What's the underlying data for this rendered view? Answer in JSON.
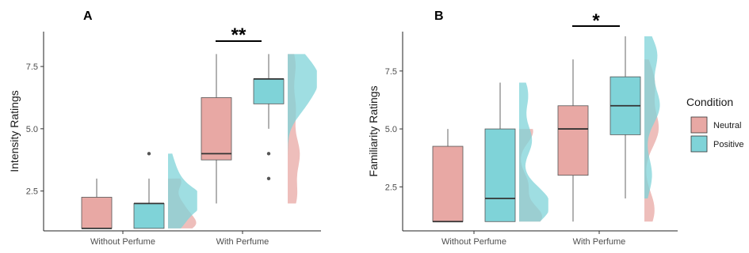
{
  "chart_data": [
    {
      "type": "boxplot",
      "panel_label": "A",
      "ylabel": "Intensity Ratings",
      "ylim": [
        0.9,
        8.9
      ],
      "yticks": [
        2.5,
        5.0,
        7.5
      ],
      "ytick_labels": [
        "2.5",
        "5.0",
        "7.5"
      ],
      "categories": [
        "Without Perfume",
        "With Perfume"
      ],
      "series": [
        {
          "name": "Neutral",
          "color": "#e8a8a4",
          "boxes": [
            {
              "min": 1,
              "q1": 1,
              "median": 1,
              "q3": 2.25,
              "max": 3,
              "outliers": []
            },
            {
              "min": 2,
              "q1": 3.75,
              "median": 4,
              "q3": 6.25,
              "max": 8,
              "outliers": []
            }
          ],
          "density": [
            {
              "min": 1,
              "max": 3,
              "peaks": [
                [
                  1.1,
                  0.9
                ],
                [
                  1.6,
                  0.5
                ],
                [
                  2.1,
                  0.35
                ],
                [
                  2.9,
                  0.5
                ]
              ]
            },
            {
              "min": 2,
              "max": 8,
              "peaks": [
                [
                  2.3,
                  0.35
                ],
                [
                  4.0,
                  0.45
                ],
                [
                  5.8,
                  0.3
                ],
                [
                  7.6,
                  0.3
                ]
              ]
            }
          ]
        },
        {
          "name": "Positive",
          "color": "#7fd3d8",
          "boxes": [
            {
              "min": 1,
              "q1": 1,
              "median": 2,
              "q3": 2,
              "max": 3,
              "outliers": [
                4
              ]
            },
            {
              "min": 5,
              "q1": 6,
              "median": 7,
              "q3": 7,
              "max": 8,
              "outliers": [
                4,
                3
              ]
            }
          ],
          "density": [
            {
              "min": 1,
              "max": 4,
              "peaks": [
                [
                  1.2,
                  0.5
                ],
                [
                  2.0,
                  0.95
                ],
                [
                  2.4,
                  0.6
                ],
                [
                  3.1,
                  0.3
                ],
                [
                  3.8,
                  0.15
                ]
              ]
            },
            {
              "min": 3,
              "max": 8,
              "peaks": [
                [
                  6.0,
                  0.55
                ],
                [
                  7.0,
                  0.95
                ],
                [
                  7.9,
                  0.45
                ]
              ]
            }
          ]
        }
      ],
      "significance": {
        "label": "**",
        "between": "With Perfume"
      }
    },
    {
      "type": "boxplot",
      "panel_label": "B",
      "ylabel": "Familiarity Ratings",
      "ylim": [
        0.6,
        9.2
      ],
      "yticks": [
        2.5,
        5.0,
        7.5
      ],
      "ytick_labels": [
        "2.5",
        "5.0",
        "7.5"
      ],
      "categories": [
        "Without Perfume",
        "With Perfume"
      ],
      "series": [
        {
          "name": "Neutral",
          "color": "#e8a8a4",
          "boxes": [
            {
              "min": 1,
              "q1": 1,
              "median": 1,
              "q3": 4.25,
              "max": 5,
              "outliers": []
            },
            {
              "min": 1,
              "q1": 3,
              "median": 5,
              "q3": 6,
              "max": 8,
              "outliers": []
            }
          ],
          "density": [
            {
              "min": 1,
              "max": 5,
              "peaks": [
                [
                  1.2,
                  0.9
                ],
                [
                  2.6,
                  0.35
                ],
                [
                  4.9,
                  0.55
                ]
              ]
            },
            {
              "min": 1,
              "max": 8,
              "peaks": [
                [
                  1.5,
                  0.4
                ],
                [
                  5.0,
                  0.55
                ],
                [
                  7.0,
                  0.4
                ]
              ]
            }
          ]
        },
        {
          "name": "Positive",
          "color": "#7fd3d8",
          "boxes": [
            {
              "min": 1,
              "q1": 1,
              "median": 2,
              "q3": 5,
              "max": 7,
              "outliers": []
            },
            {
              "min": 2,
              "q1": 4.75,
              "median": 6,
              "q3": 7.25,
              "max": 9,
              "outliers": []
            }
          ],
          "density": [
            {
              "min": 1,
              "max": 7,
              "peaks": [
                [
                  1.3,
                  0.6
                ],
                [
                  2.0,
                  0.8
                ],
                [
                  4.5,
                  0.5
                ],
                [
                  6.5,
                  0.35
                ]
              ]
            },
            {
              "min": 2,
              "max": 9,
              "peaks": [
                [
                  3.0,
                  0.3
                ],
                [
                  6.0,
                  0.6
                ],
                [
                  8.2,
                  0.5
                ]
              ]
            }
          ]
        }
      ],
      "significance": {
        "label": "*",
        "between": "With Perfume"
      }
    }
  ],
  "legend": {
    "title": "Condition",
    "items": [
      {
        "label": "Neutral",
        "color": "#e8a8a4"
      },
      {
        "label": "Positive",
        "color": "#7fd3d8"
      }
    ]
  }
}
